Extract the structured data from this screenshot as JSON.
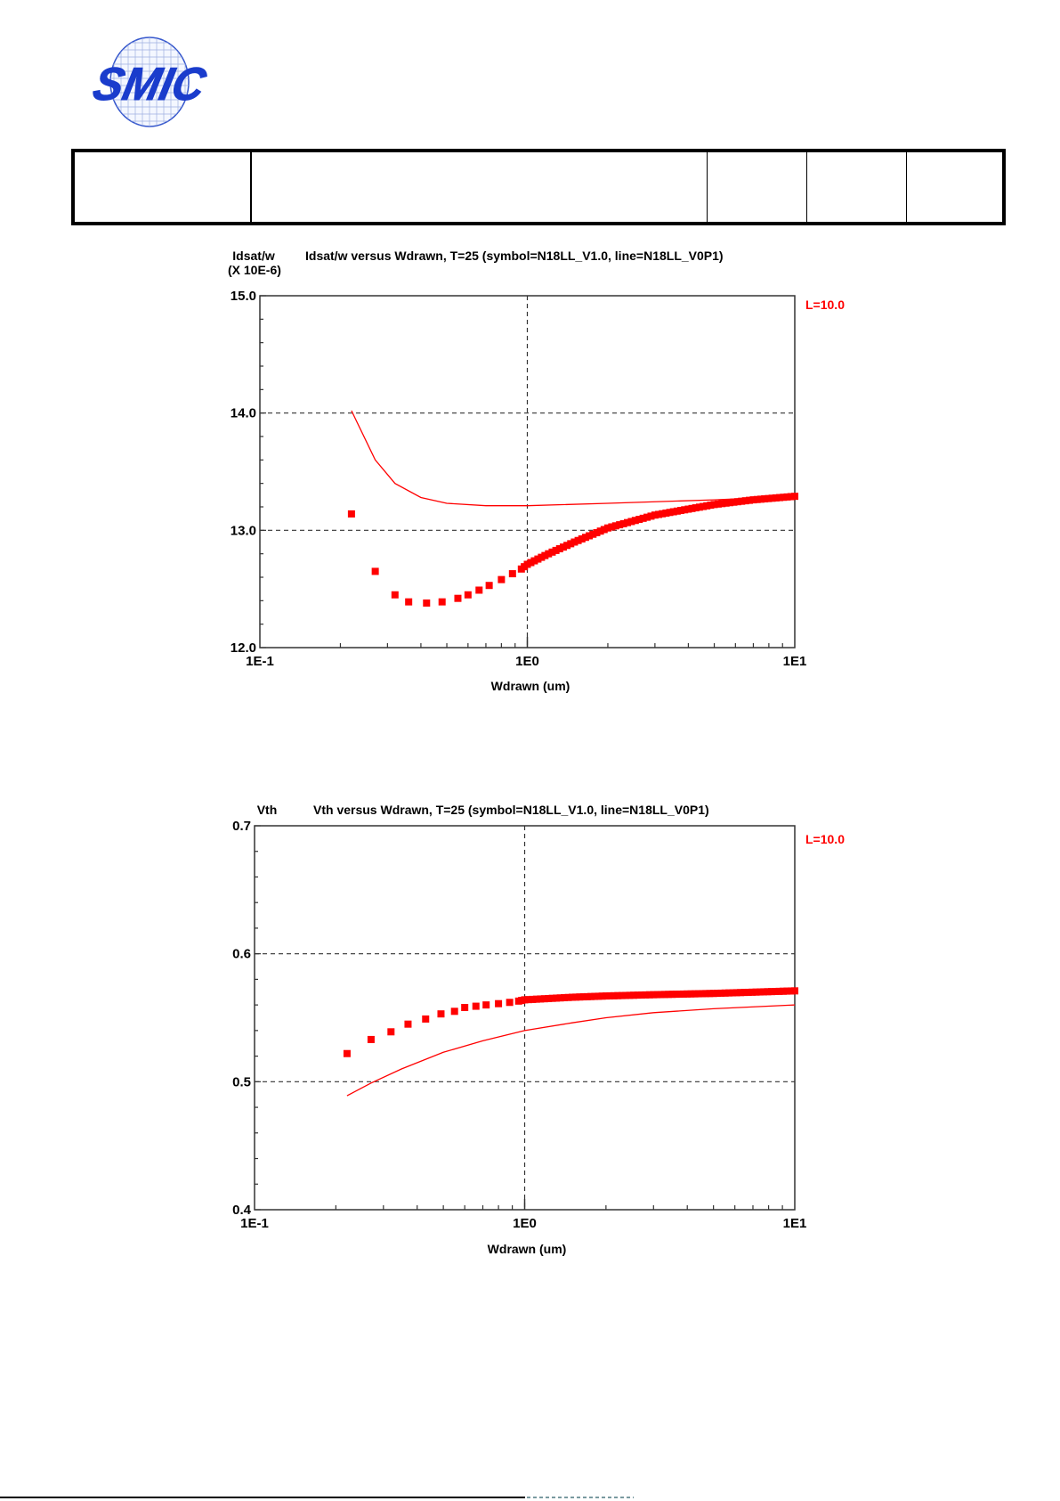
{
  "logo": {
    "text": "SMIC",
    "text_color": "#1a3ccc",
    "globe_color": "#3355cc"
  },
  "header_table": {
    "cells": [
      "",
      "",
      "",
      "",
      ""
    ]
  },
  "chart_data": [
    {
      "type": "scatter",
      "title": "Idsat/w versus Wdrawn, T=25 (symbol=N18LL_V1.0, line=N18LL_V0P1)",
      "ylabel": "Idsat/w",
      "ylabel_scale": "(X 10E-6)",
      "xlabel": "Wdrawn (um)",
      "xscale": "log",
      "xlim": [
        0.1,
        10
      ],
      "ylim": [
        12.0,
        15.0
      ],
      "x_tick_labels": [
        "1E-1",
        "1E0",
        "1E1"
      ],
      "y_tick_labels": [
        "15.0",
        "14.0",
        "13.0",
        "12.0"
      ],
      "grid": "dashed at y=13.0, 14.0 and x=1E0",
      "legend_label": "L=10.0",
      "series_color": "#ff0000",
      "series": [
        {
          "name": "symbol=N18LL_V1.0",
          "style": "square markers",
          "x": [
            0.22,
            0.27,
            0.32,
            0.36,
            0.42,
            0.48,
            0.55,
            0.6,
            0.66,
            0.72,
            0.8,
            0.88,
            0.95,
            1.0,
            1.2,
            1.5,
            2.0,
            3.0,
            5.0,
            7.0,
            10.0
          ],
          "y": [
            13.14,
            12.65,
            12.45,
            12.39,
            12.38,
            12.39,
            12.42,
            12.45,
            12.49,
            12.53,
            12.58,
            12.63,
            12.67,
            12.71,
            12.8,
            12.9,
            13.02,
            13.13,
            13.22,
            13.26,
            13.29
          ]
        },
        {
          "name": "line=N18LL_V0P1",
          "style": "solid line",
          "x": [
            0.22,
            0.27,
            0.32,
            0.4,
            0.5,
            0.7,
            1.0,
            2.0,
            5.0,
            10.0
          ],
          "y": [
            14.02,
            13.6,
            13.4,
            13.28,
            13.23,
            13.21,
            13.21,
            13.23,
            13.26,
            13.29
          ]
        }
      ]
    },
    {
      "type": "scatter",
      "title": "Vth versus Wdrawn, T=25 (symbol=N18LL_V1.0, line=N18LL_V0P1)",
      "ylabel": "Vth",
      "xlabel": "Wdrawn (um)",
      "xscale": "log",
      "xlim": [
        0.1,
        10
      ],
      "ylim": [
        0.4,
        0.7
      ],
      "x_tick_labels": [
        "1E-1",
        "1E0",
        "1E1"
      ],
      "y_tick_labels": [
        "0.7",
        "0.6",
        "0.5",
        "0.4"
      ],
      "grid": "dashed at y=0.5, 0.6 and x=1E0",
      "legend_label": "L=10.0",
      "series_color": "#ff0000",
      "series": [
        {
          "name": "symbol=N18LL_V1.0",
          "style": "square markers",
          "x": [
            0.22,
            0.27,
            0.32,
            0.37,
            0.43,
            0.49,
            0.55,
            0.6,
            0.66,
            0.72,
            0.8,
            0.88,
            0.95,
            1.0,
            1.5,
            2.0,
            3.0,
            5.0,
            10.0
          ],
          "y": [
            0.522,
            0.533,
            0.539,
            0.545,
            0.549,
            0.553,
            0.555,
            0.558,
            0.559,
            0.56,
            0.561,
            0.562,
            0.563,
            0.564,
            0.566,
            0.567,
            0.568,
            0.569,
            0.571
          ]
        },
        {
          "name": "line=N18LL_V0P1",
          "style": "solid line",
          "x": [
            0.22,
            0.27,
            0.35,
            0.5,
            0.7,
            1.0,
            1.5,
            2.0,
            3.0,
            5.0,
            10.0
          ],
          "y": [
            0.489,
            0.499,
            0.51,
            0.523,
            0.532,
            0.54,
            0.546,
            0.55,
            0.554,
            0.557,
            0.56
          ]
        }
      ]
    }
  ]
}
